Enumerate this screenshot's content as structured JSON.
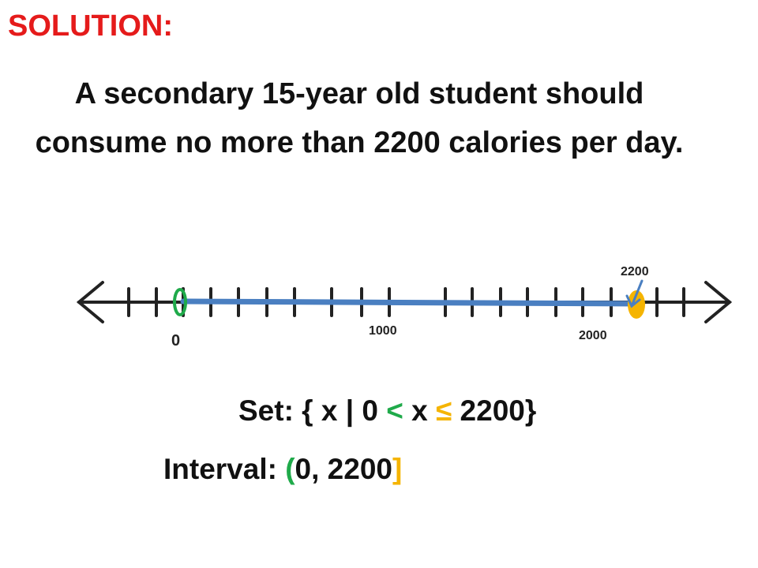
{
  "heading": "SOLUTION:",
  "problem": "A secondary 15-year old student should consume no more than 2200 calories per day.",
  "number_line": {
    "labels": {
      "zero": "0",
      "thousand": "1000",
      "two_thousand": "2000",
      "bound": "2200"
    },
    "colors": {
      "axis": "#222222",
      "shaded_segment": "#4a7fc1",
      "open_endpoint": "#1faa4a",
      "closed_endpoint": "#f5b400",
      "pointer_arrow": "#4a7fc1"
    }
  },
  "set_notation": {
    "prefix": "Set: { x | 0 ",
    "less_than": "<",
    "middle": " x ",
    "less_equal": "≤",
    "suffix": " 2200}"
  },
  "interval_notation": {
    "prefix": "Interval: ",
    "open_bracket": "(",
    "values": "0, 2200",
    "close_bracket": "]"
  }
}
